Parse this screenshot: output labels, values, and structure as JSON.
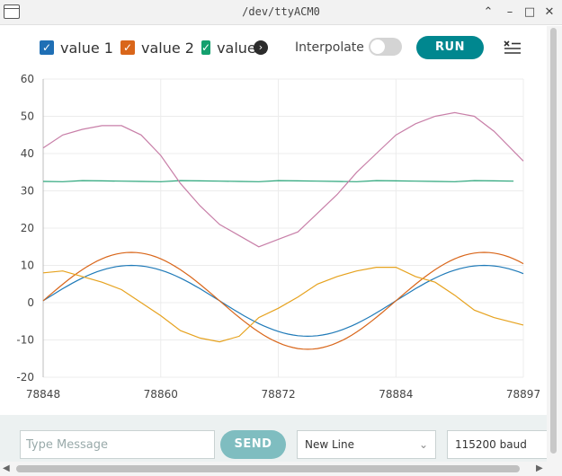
{
  "window": {
    "title": "/dev/ttyACM0",
    "icons": [
      "window-icon",
      "chevron-up-icon",
      "minimize-icon",
      "maximize-icon",
      "close-icon"
    ],
    "controls": {
      "collapse": "⌃",
      "minimize": "–",
      "maximize": "□",
      "close": "✕"
    }
  },
  "toolbar": {
    "legend": [
      {
        "label": "value 1",
        "color": "#1f6fb5"
      },
      {
        "label": "value 2",
        "color": "#d9661a"
      },
      {
        "label": "value 3",
        "color": "#14a06e"
      }
    ],
    "more_icon": "›",
    "interpolate_label": "Interpolate",
    "interpolate_on": false,
    "run_label": "RUN",
    "clear_icon": "clear-list-icon"
  },
  "chart_data": {
    "type": "line",
    "ylim": [
      -20,
      60
    ],
    "yticks": [
      "60",
      "50",
      "40",
      "30",
      "20",
      "10",
      "0",
      "-10",
      "-20"
    ],
    "xlim": [
      78848,
      78897
    ],
    "xticks": [
      "78848",
      "78860",
      "78872",
      "78884",
      "78897"
    ],
    "grid": true,
    "series": [
      {
        "name": "value 1",
        "color": "#1f7ab8",
        "kind": "sine",
        "amplitude": 9.5,
        "period": 36,
        "phase_x": 78848,
        "offset": 0.5,
        "noise": 0
      },
      {
        "name": "value 2",
        "color": "#d9661a",
        "kind": "sine",
        "amplitude": 13,
        "period": 36,
        "phase_x": 78848,
        "offset": 0.5,
        "noise": 0
      },
      {
        "name": "",
        "color": "#2aa57a",
        "kind": "flat",
        "offset": 32.6,
        "noise": 0.15
      },
      {
        "name": "",
        "color": "#e6a21e",
        "kind": "points",
        "x": [
          78848,
          78850,
          78852,
          78854,
          78856,
          78858,
          78860,
          78862,
          78864,
          78866,
          78868,
          78870,
          78872,
          78874,
          78876,
          78878,
          78880,
          78882,
          78884,
          78886,
          78888,
          78890,
          78892,
          78894,
          78897
        ],
        "y": [
          8,
          8.5,
          7,
          5.5,
          3.5,
          0,
          -3.5,
          -7.5,
          -9.5,
          -10.5,
          -9,
          -4,
          -1.5,
          1.5,
          5,
          7,
          8.5,
          9.5,
          9.5,
          7,
          5.5,
          2,
          -2,
          -4,
          -6
        ]
      },
      {
        "name": "",
        "color": "#c87fa8",
        "kind": "points",
        "x": [
          78848,
          78850,
          78852,
          78854,
          78856,
          78858,
          78860,
          78862,
          78864,
          78866,
          78868,
          78870,
          78872,
          78874,
          78876,
          78878,
          78880,
          78882,
          78884,
          78886,
          78888,
          78890,
          78892,
          78894,
          78897
        ],
        "y": [
          41.5,
          45,
          46.5,
          47.5,
          47.5,
          45,
          39.5,
          32,
          26,
          21,
          18,
          15,
          17,
          19,
          24,
          29,
          35,
          40,
          45,
          48,
          50,
          51,
          50,
          46,
          38
        ]
      }
    ]
  },
  "bottom": {
    "message_placeholder": "Type Message",
    "message_value": "",
    "send_label": "SEND",
    "line_ending": "New Line",
    "baud": "115200 baud",
    "select_chevron": "⌄"
  },
  "scroll": {
    "left_arrow": "◀",
    "right_arrow": "▶"
  }
}
